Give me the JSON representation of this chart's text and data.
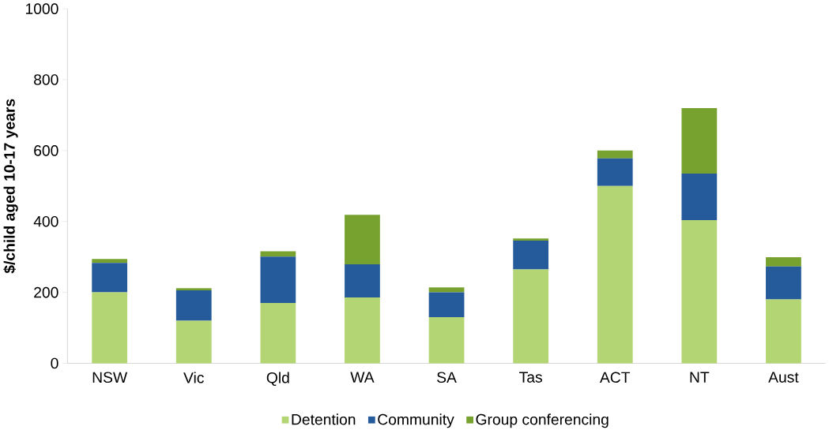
{
  "chart_data": {
    "type": "bar",
    "stacked": true,
    "ylabel": "$/child aged 10-17 years",
    "categories": [
      "NSW",
      "Vic",
      "Qld",
      "WA",
      "SA",
      "Tas",
      "ACT",
      "NT",
      "Aust"
    ],
    "series": [
      {
        "name": "Detention",
        "color": "#b3d574",
        "values": [
          200,
          120,
          170,
          186,
          130,
          265,
          500,
          404,
          180
        ]
      },
      {
        "name": "Community",
        "color": "#265b9b",
        "values": [
          83,
          86,
          131,
          93,
          70,
          81,
          78,
          131,
          93
        ]
      },
      {
        "name": "Group conferencing",
        "color": "#78a22f",
        "values": [
          11,
          6,
          15,
          140,
          14,
          6,
          22,
          185,
          26
        ]
      }
    ],
    "ylim": [
      0,
      1000
    ],
    "yticks": [
      0,
      200,
      400,
      600,
      800,
      1000
    ],
    "grid": false,
    "legend": "bottom"
  }
}
